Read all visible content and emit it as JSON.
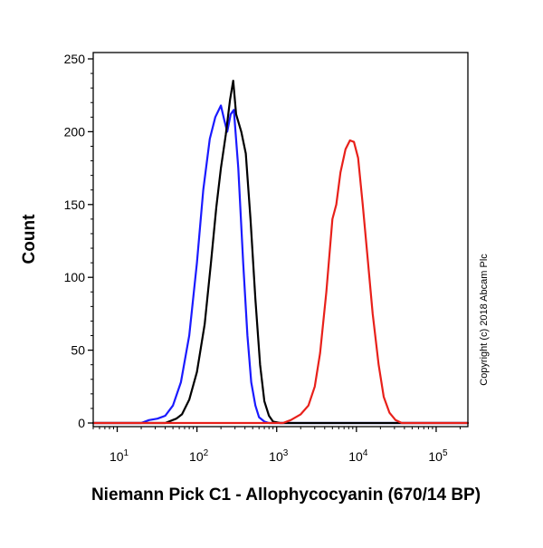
{
  "chart_data": {
    "type": "line",
    "title": "",
    "xlabel": "Niemann Pick C1 - Allophycocyanin (670/14 BP)",
    "ylabel": "Count",
    "x_scale": "log",
    "xlim": [
      5,
      250000
    ],
    "ylim": [
      0,
      255
    ],
    "x_ticks": [
      {
        "value": 10,
        "base": "10",
        "exp": "1"
      },
      {
        "value": 100,
        "base": "10",
        "exp": "2"
      },
      {
        "value": 1000,
        "base": "10",
        "exp": "3"
      },
      {
        "value": 10000,
        "base": "10",
        "exp": "4"
      },
      {
        "value": 100000,
        "base": "10",
        "exp": "5"
      }
    ],
    "y_ticks": [
      "0",
      "50",
      "100",
      "150",
      "200",
      "250"
    ],
    "grid": false,
    "legend": "none",
    "annotation": "Copyright (c) 2018 Abcam Plc",
    "series": [
      {
        "color": "#1a1aff",
        "points": [
          [
            5,
            0
          ],
          [
            20,
            0
          ],
          [
            25,
            2
          ],
          [
            32,
            3
          ],
          [
            40,
            5
          ],
          [
            50,
            12
          ],
          [
            63,
            28
          ],
          [
            80,
            60
          ],
          [
            100,
            110
          ],
          [
            120,
            160
          ],
          [
            145,
            195
          ],
          [
            170,
            210
          ],
          [
            200,
            218
          ],
          [
            220,
            208
          ],
          [
            240,
            200
          ],
          [
            265,
            212
          ],
          [
            290,
            215
          ],
          [
            330,
            175
          ],
          [
            380,
            110
          ],
          [
            430,
            60
          ],
          [
            480,
            28
          ],
          [
            540,
            12
          ],
          [
            600,
            4
          ],
          [
            700,
            1
          ],
          [
            800,
            0
          ],
          [
            250000,
            0
          ]
        ]
      },
      {
        "color": "#000000",
        "points": [
          [
            5,
            0
          ],
          [
            40,
            0
          ],
          [
            55,
            3
          ],
          [
            65,
            6
          ],
          [
            80,
            16
          ],
          [
            100,
            35
          ],
          [
            125,
            68
          ],
          [
            150,
            110
          ],
          [
            175,
            148
          ],
          [
            200,
            175
          ],
          [
            230,
            198
          ],
          [
            260,
            222
          ],
          [
            285,
            235
          ],
          [
            310,
            212
          ],
          [
            360,
            200
          ],
          [
            410,
            185
          ],
          [
            470,
            140
          ],
          [
            540,
            85
          ],
          [
            620,
            40
          ],
          [
            700,
            15
          ],
          [
            800,
            5
          ],
          [
            900,
            1
          ],
          [
            1100,
            0
          ],
          [
            250000,
            0
          ]
        ]
      },
      {
        "color": "#e8201a",
        "points": [
          [
            5,
            0
          ],
          [
            1200,
            0
          ],
          [
            1500,
            2
          ],
          [
            2000,
            6
          ],
          [
            2500,
            12
          ],
          [
            3000,
            25
          ],
          [
            3500,
            48
          ],
          [
            4200,
            90
          ],
          [
            5000,
            140
          ],
          [
            5600,
            150
          ],
          [
            6300,
            172
          ],
          [
            7300,
            188
          ],
          [
            8300,
            194
          ],
          [
            9300,
            193
          ],
          [
            10500,
            182
          ],
          [
            12000,
            150
          ],
          [
            14000,
            110
          ],
          [
            16000,
            75
          ],
          [
            19000,
            40
          ],
          [
            22000,
            18
          ],
          [
            26000,
            7
          ],
          [
            31000,
            2
          ],
          [
            37000,
            0
          ],
          [
            250000,
            0
          ]
        ]
      }
    ]
  }
}
